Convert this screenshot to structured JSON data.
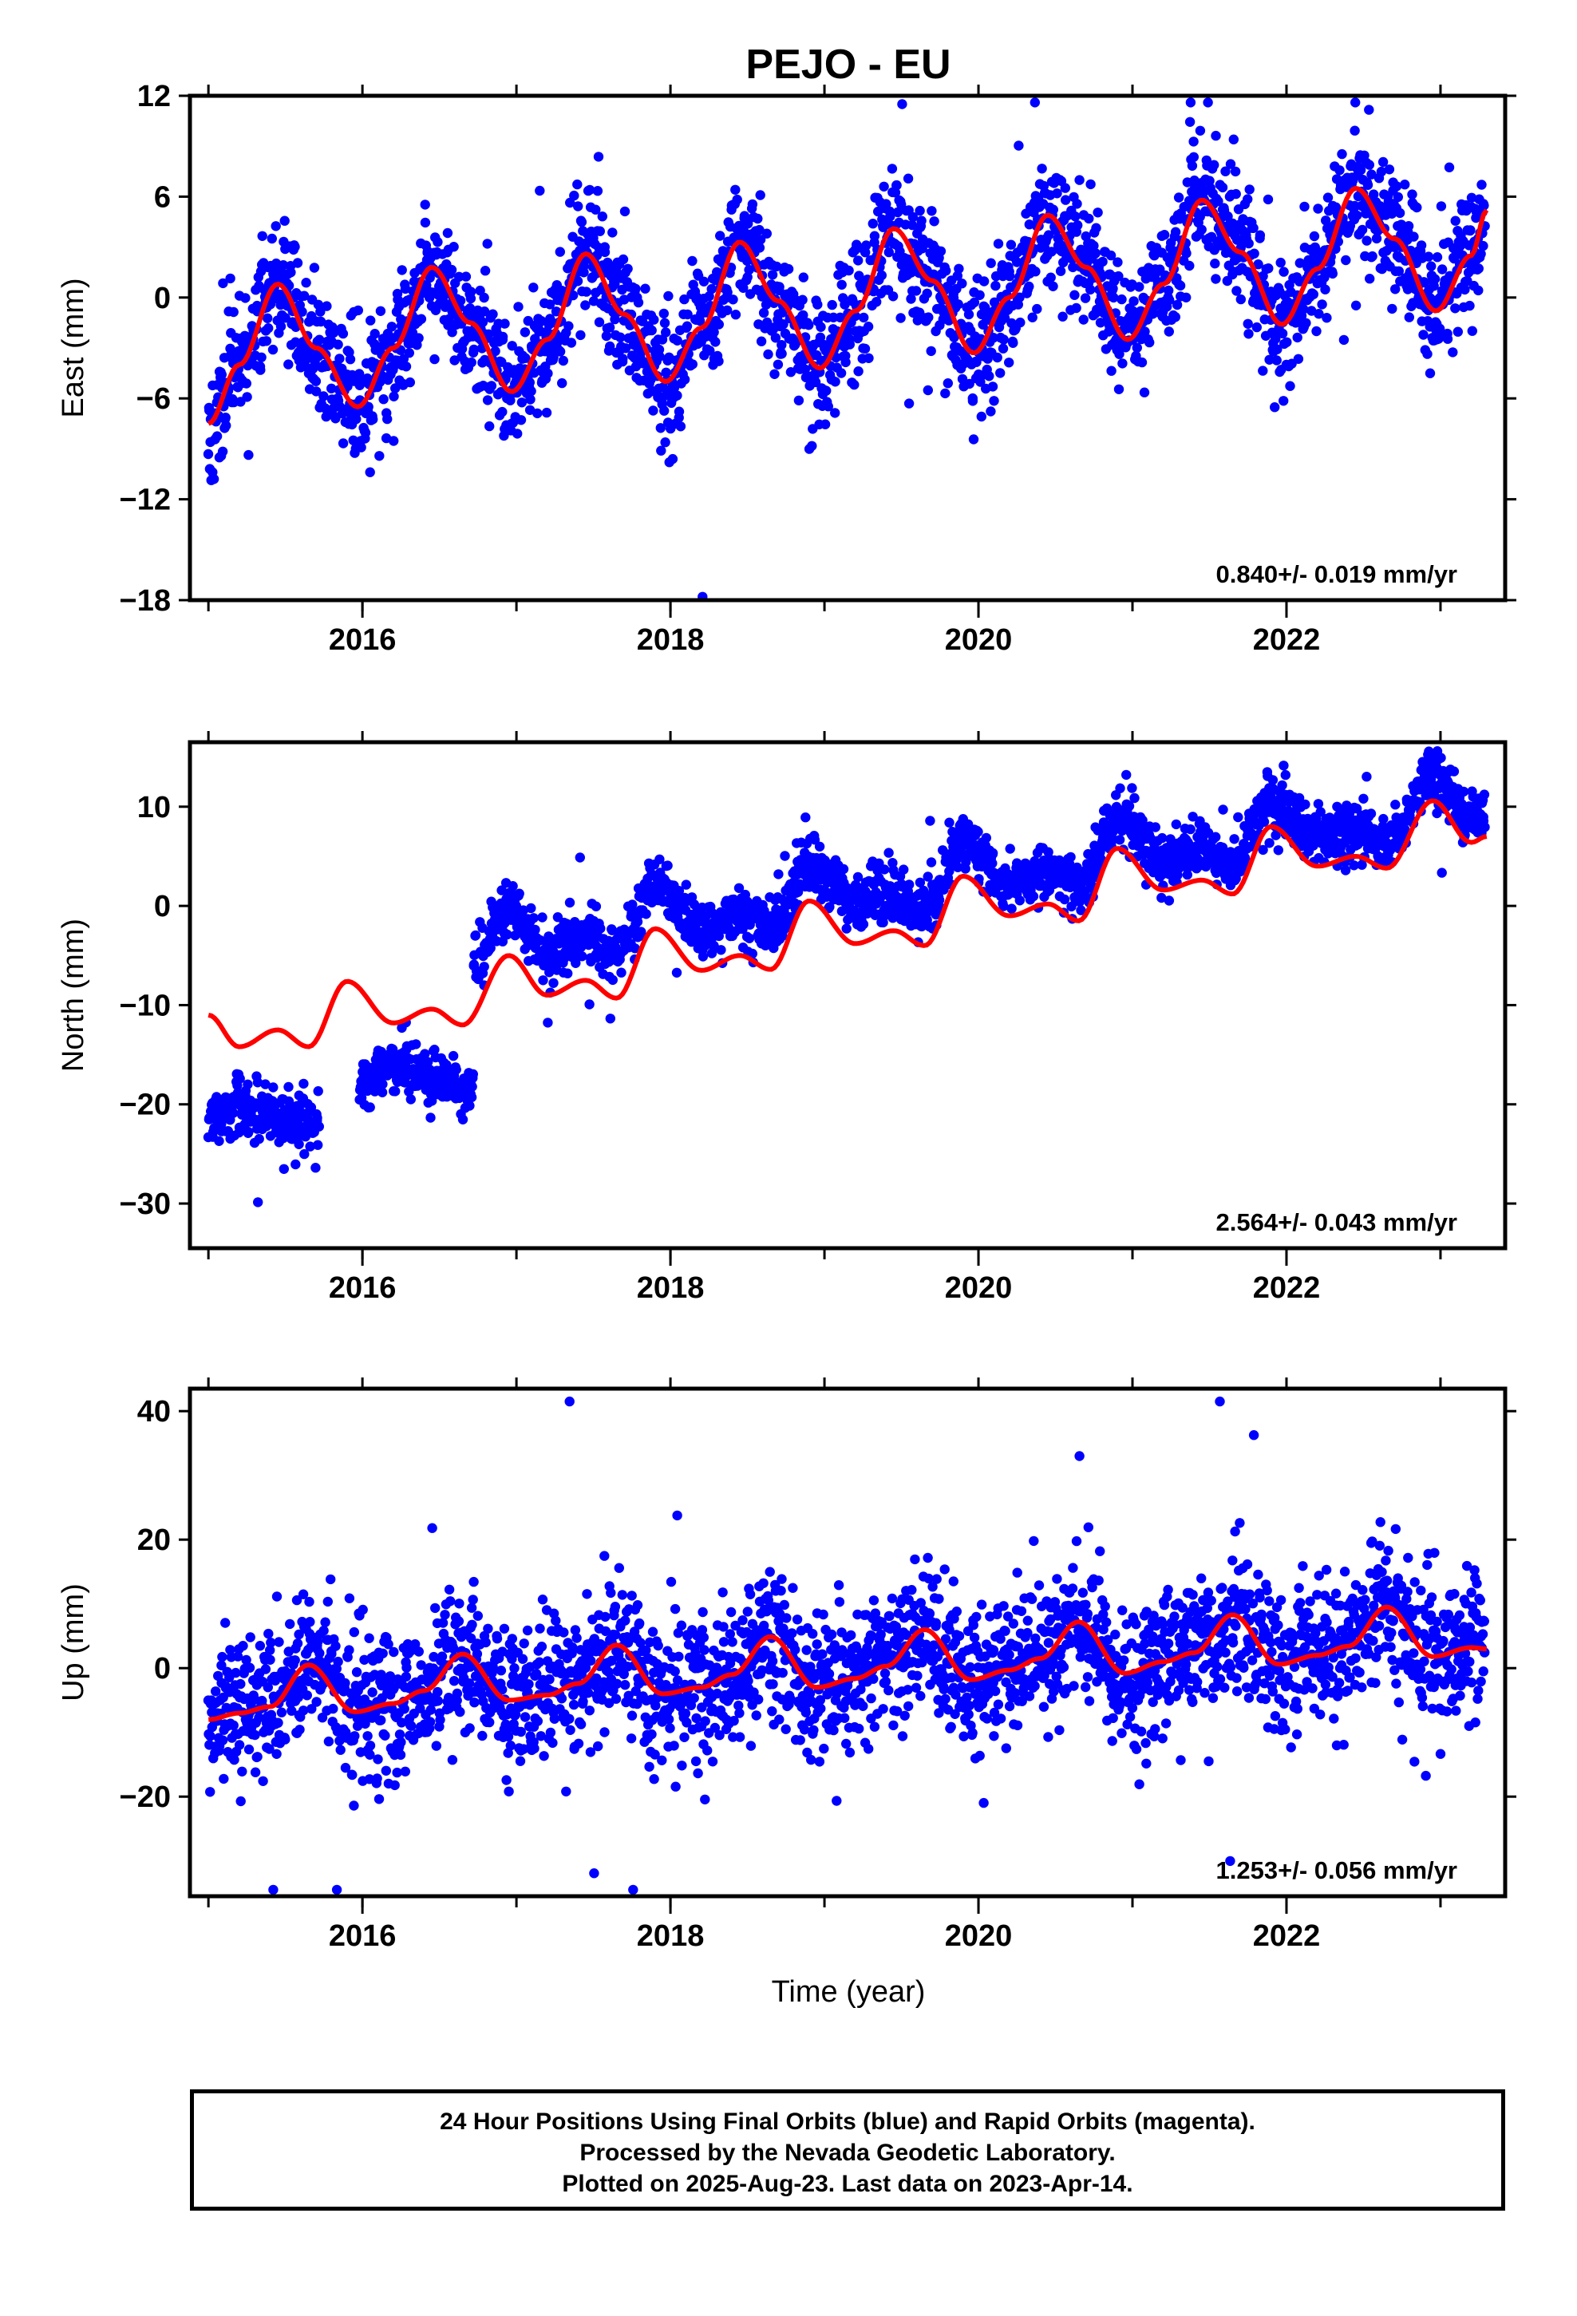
{
  "chart_data": {
    "type": "scatter",
    "title": "PEJO - EU",
    "xlabel": "Time (year)",
    "xlim": [
      2014.88,
      2023.42
    ],
    "x_ticks": [
      "2016",
      "2018",
      "2020",
      "2022"
    ],
    "colors": {
      "points": "#0000ff",
      "model": "#ff0000",
      "axes": "#000000"
    },
    "panels": [
      {
        "name": "east",
        "ylabel": "East (mm)",
        "ylim": [
          -18,
          12
        ],
        "y_ticks": [
          "12",
          "6",
          "0",
          "−6",
          "−12",
          "−18"
        ],
        "rate_label": "0.840+/- 0.019 mm/yr",
        "model": {
          "x": [
            2015.0,
            2015.2,
            2015.45,
            2015.7,
            2015.97,
            2016.2,
            2016.45,
            2016.7,
            2016.97,
            2017.2,
            2017.45,
            2017.7,
            2017.97,
            2018.2,
            2018.45,
            2018.7,
            2018.97,
            2019.2,
            2019.45,
            2019.7,
            2019.97,
            2020.2,
            2020.45,
            2020.7,
            2020.97,
            2021.2,
            2021.45,
            2021.7,
            2021.97,
            2022.2,
            2022.45,
            2022.7,
            2022.97,
            2023.2,
            2023.3
          ],
          "y": [
            -7.5,
            -4,
            0.8,
            -3,
            -6.5,
            -3,
            1.8,
            -1.5,
            -5.6,
            -2.5,
            2.6,
            -1,
            -5,
            -1.8,
            3.3,
            -0.2,
            -4.2,
            -0.8,
            4.1,
            1,
            -3.3,
            0,
            4.9,
            1.8,
            -2.5,
            0.8,
            5.8,
            2.7,
            -1.6,
            1.7,
            6.5,
            3.5,
            -0.8,
            2.5,
            5.2
          ]
        },
        "scatter": {
          "count": 2600,
          "seed": 11,
          "scatter_sd": 1.9,
          "min_y": -17.8,
          "max_y": 11.6
        }
      },
      {
        "name": "north",
        "ylabel": "North (mm)",
        "ylim": [
          -34.5,
          16.5
        ],
        "y_ticks": [
          "10",
          "0",
          "−10",
          "−20",
          "−30"
        ],
        "rate_label": "2.564+/- 0.043 mm/yr",
        "model": {
          "x": [
            2015.0,
            2015.2,
            2015.45,
            2015.65,
            2015.9,
            2016.2,
            2016.45,
            2016.65,
            2016.95,
            2017.2,
            2017.45,
            2017.65,
            2017.9,
            2018.2,
            2018.45,
            2018.65,
            2018.9,
            2019.2,
            2019.45,
            2019.65,
            2019.9,
            2020.2,
            2020.45,
            2020.65,
            2020.9,
            2021.2,
            2021.45,
            2021.65,
            2021.9,
            2022.2,
            2022.45,
            2022.65,
            2022.95,
            2023.2,
            2023.3
          ],
          "y": [
            -11,
            -14.2,
            -12.5,
            -14.2,
            -7.6,
            -11.8,
            -10.4,
            -12,
            -5,
            -9,
            -7.5,
            -9.3,
            -2.3,
            -6.5,
            -5,
            -6.4,
            0.5,
            -3.8,
            -2.5,
            -4,
            3,
            -1,
            0.2,
            -1.5,
            5.8,
            1.6,
            2.6,
            1.2,
            8,
            4,
            5,
            3.8,
            10.6,
            6.4,
            7
          ]
        },
        "scatter": {
          "count": 2600,
          "seed": 23,
          "scatter_sd": 1.4,
          "min_y": -33.8,
          "max_y": 15.6
        }
      },
      {
        "name": "up",
        "ylabel": "Up (mm)",
        "ylim": [
          -35.5,
          43.5
        ],
        "y_ticks": [
          "40",
          "20",
          "0",
          "−20"
        ],
        "rate_label": "1.253+/- 0.056 mm/yr",
        "model": {
          "x": [
            2015.0,
            2015.2,
            2015.4,
            2015.65,
            2015.95,
            2016.2,
            2016.4,
            2016.65,
            2016.95,
            2017.2,
            2017.4,
            2017.65,
            2017.95,
            2018.2,
            2018.4,
            2018.65,
            2018.95,
            2019.2,
            2019.4,
            2019.65,
            2019.95,
            2020.2,
            2020.4,
            2020.65,
            2020.95,
            2021.2,
            2021.4,
            2021.65,
            2021.95,
            2022.2,
            2022.4,
            2022.65,
            2022.95,
            2023.2,
            2023.3
          ],
          "y": [
            -8,
            -7,
            -6,
            0.5,
            -6.8,
            -5.5,
            -3.5,
            2.2,
            -5,
            -4.2,
            -2.4,
            3.6,
            -4,
            -3,
            -1,
            4.9,
            -3,
            -1.6,
            0.3,
            6,
            -1.8,
            -0.3,
            1.5,
            7.2,
            -0.8,
            1,
            2.4,
            8.3,
            0.6,
            2,
            3.4,
            9.5,
            1.8,
            3.2,
            3
          ]
        },
        "scatter": {
          "count": 2600,
          "seed": 37,
          "scatter_sd": 5.5,
          "min_y": -34.5,
          "max_y": 41.5
        }
      }
    ]
  },
  "caption": {
    "line1": "24 Hour Positions Using Final Orbits (blue) and Rapid Orbits (magenta).",
    "line2": "Processed by the Nevada Geodetic Laboratory.",
    "line3": "Plotted on 2025-Aug-23. Last data on 2023-Apr-14."
  }
}
